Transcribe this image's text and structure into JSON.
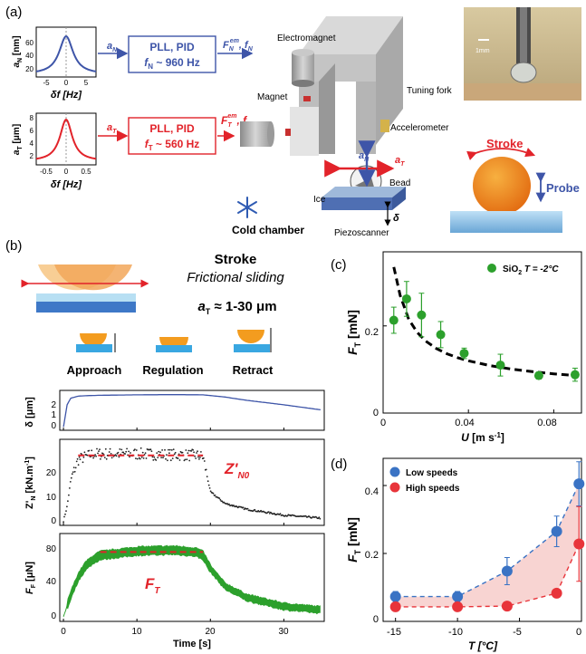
{
  "panel_a": {
    "label": "(a)",
    "normal_box": {
      "line1": "PLL, PID",
      "line2": "f",
      "line2_sub": "N",
      "line2_rest": " ~ 960 Hz"
    },
    "tangential_box": {
      "line1": "PLL, PID",
      "line2": "f",
      "line2_sub": "T",
      "line2_rest": " ~ 560 Hz"
    },
    "arrow_in_normal": "a",
    "arrow_in_normal_sub": "N",
    "arrow_in_tang": "a",
    "arrow_in_tang_sub": "T",
    "out_normal": "F",
    "out_normal_sub": "N",
    "out_normal_sup": "em",
    "out_normal_rest": ", f",
    "out_normal_rest_sub": "N",
    "out_tang": "F",
    "out_tang_sub": "T",
    "out_tang_sup": "em",
    "out_tang_rest": ", f",
    "out_tang_rest_sub": "T",
    "top_inset": {
      "ylabel": "a",
      "ylabel_sub": "N",
      "ylabel_unit": " [nm]",
      "yticks": [
        "60",
        "40",
        "20"
      ],
      "xticks": [
        "-5",
        "0",
        "5"
      ],
      "xlabel": "δf [Hz]"
    },
    "bottom_inset": {
      "ylabel": "a",
      "ylabel_sub": "T",
      "ylabel_unit": " [μm]",
      "yticks": [
        "8",
        "6",
        "4",
        "2"
      ],
      "xticks": [
        "-0.5",
        "0",
        "0.5"
      ],
      "xlabel": "δf [Hz]"
    },
    "labels": {
      "electromagnet": "Electromagnet",
      "magnet": "Magnet",
      "tuning_fork": "Tuning fork",
      "accelerometer": "Accelerometer",
      "ice": "Ice",
      "bead": "Bead",
      "piezoscanner": "Piezoscanner",
      "delta": "δ",
      "cold_chamber": "Cold chamber",
      "a_n": "a",
      "a_n_sub": "N",
      "a_t": "a",
      "a_t_sub": "T",
      "stroke": "Stroke",
      "probe": "Probe",
      "scale_bar": "1mm"
    }
  },
  "panel_b": {
    "label": "(b)",
    "title": "Stroke",
    "subtitle": "Frictional sliding",
    "amp": "a",
    "amp_sub": "T",
    "amp_rest": " ≈ 1-30 μm",
    "steps": [
      "Approach",
      "Regulation",
      "Retract"
    ],
    "plot1": {
      "ylabel": "δ [μm]",
      "yticks": [
        "2",
        "1",
        "0"
      ]
    },
    "plot2": {
      "ylabel": "Z'",
      "ylabel_sub": "N",
      "ylabel_unit": " [kN.m",
      "ylabel_sup": "-1",
      "ylabel_end": "]",
      "yticks": [
        "20",
        "10",
        "0"
      ],
      "annot": "Z'",
      "annot_sub": "N0"
    },
    "plot3": {
      "ylabel": "F",
      "ylabel_sub": "F",
      "ylabel_unit": " [μN]",
      "yticks": [
        "80",
        "40",
        "0"
      ],
      "annot": "F",
      "annot_sub": "T"
    },
    "xticks": [
      "0",
      "10",
      "20",
      "30"
    ],
    "xlabel": "Time [s]"
  },
  "panel_c": {
    "label": "(c)",
    "legend": "SiO",
    "legend_sub": "2",
    "legend_rest": " T = -2°C",
    "ylabel": "F",
    "ylabel_sub": "T",
    "ylabel_unit": " [mN]",
    "xlabel": "U",
    "xlabel_unit": " [m s",
    "xlabel_sup": "-1",
    "xlabel_end": "]",
    "yticks": [
      "0.2",
      "0"
    ],
    "xticks": [
      "0",
      "0.04",
      "0.08"
    ]
  },
  "panel_d": {
    "label": "(d)",
    "legend": [
      "Low speeds",
      "High speeds"
    ],
    "ylabel": "F",
    "ylabel_sub": "T",
    "ylabel_unit": " [mN]",
    "xlabel": "T [°C]",
    "yticks": [
      "0.4",
      "0.2",
      "0"
    ],
    "xticks": [
      "-15",
      "-10",
      "-5",
      "0"
    ]
  },
  "chart_data": [
    {
      "type": "scatter",
      "panel": "c",
      "xlabel": "U [m s-1]",
      "ylabel": "FT [mN]",
      "xlim": [
        0,
        0.093
      ],
      "ylim": [
        0,
        0.37
      ],
      "series": [
        {
          "name": "SiO2 T = -2°C",
          "color": "#2ca02c",
          "x": [
            0.005,
            0.011,
            0.018,
            0.027,
            0.038,
            0.055,
            0.073,
            0.09
          ],
          "y": [
            0.213,
            0.262,
            0.225,
            0.18,
            0.137,
            0.11,
            0.086,
            0.088
          ],
          "err": [
            0.03,
            0.04,
            0.05,
            0.03,
            0.012,
            0.025,
            0.008,
            0.015
          ]
        }
      ],
      "fit": {
        "x": [
          0.005,
          0.008,
          0.012,
          0.016,
          0.02,
          0.025,
          0.03,
          0.035,
          0.04,
          0.05,
          0.06,
          0.07,
          0.08,
          0.09
        ],
        "y": [
          0.335,
          0.27,
          0.215,
          0.185,
          0.165,
          0.148,
          0.136,
          0.127,
          0.12,
          0.109,
          0.101,
          0.095,
          0.09,
          0.086
        ]
      }
    },
    {
      "type": "line",
      "panel": "d",
      "xlabel": "T [°C]",
      "ylabel": "FT [mN]",
      "xlim": [
        -16,
        0
      ],
      "ylim": [
        0,
        0.48
      ],
      "series": [
        {
          "name": "Low speeds",
          "color": "#3a73c4",
          "x": [
            -15,
            -10,
            -6,
            -2,
            -0.2
          ],
          "y": [
            0.073,
            0.073,
            0.148,
            0.265,
            0.405
          ],
          "err": [
            0.015,
            0.015,
            0.04,
            0.045,
            0.065
          ]
        },
        {
          "name": "High speeds",
          "color": "#e8343a",
          "x": [
            -15,
            -10,
            -6,
            -2,
            -0.2
          ],
          "y": [
            0.043,
            0.043,
            0.045,
            0.083,
            0.228
          ],
          "err": [
            0.008,
            0.008,
            0.008,
            0.01,
            0.11
          ]
        }
      ]
    },
    {
      "type": "line",
      "panel": "b",
      "xlabel": "Time [s]",
      "xlim": [
        -0.5,
        35.5
      ],
      "subplots": [
        {
          "ylabel": "δ [μm]",
          "ylim": [
            -0.3,
            3.3
          ],
          "x": [
            0,
            0.5,
            1,
            2,
            3,
            5,
            10,
            15,
            19,
            22,
            25,
            30,
            35
          ],
          "y": [
            0,
            2.0,
            2.6,
            2.78,
            2.82,
            2.86,
            2.9,
            2.92,
            2.9,
            2.7,
            2.4,
            2.0,
            1.55
          ]
        },
        {
          "ylabel": "Z'N [kN.m-1]",
          "ylim": [
            -1.5,
            28
          ],
          "x": [
            0,
            0.5,
            1,
            2,
            4,
            10,
            18,
            19,
            20,
            22,
            25,
            30,
            35
          ],
          "y": [
            0,
            5,
            14,
            21,
            23,
            23,
            22.5,
            22,
            10,
            6,
            4,
            2,
            1
          ],
          "mean_annot": 22.5
        },
        {
          "ylabel": "FF [μN]",
          "ylim": [
            -5,
            95
          ],
          "x": [
            0,
            1,
            2,
            3,
            4,
            5,
            7,
            10,
            15,
            18,
            19,
            20,
            22,
            25,
            30,
            35
          ],
          "y": [
            0,
            25,
            45,
            58,
            65,
            70,
            72,
            75,
            76,
            74,
            70,
            55,
            35,
            22,
            12,
            8
          ],
          "mean_annot": 74
        }
      ]
    }
  ]
}
